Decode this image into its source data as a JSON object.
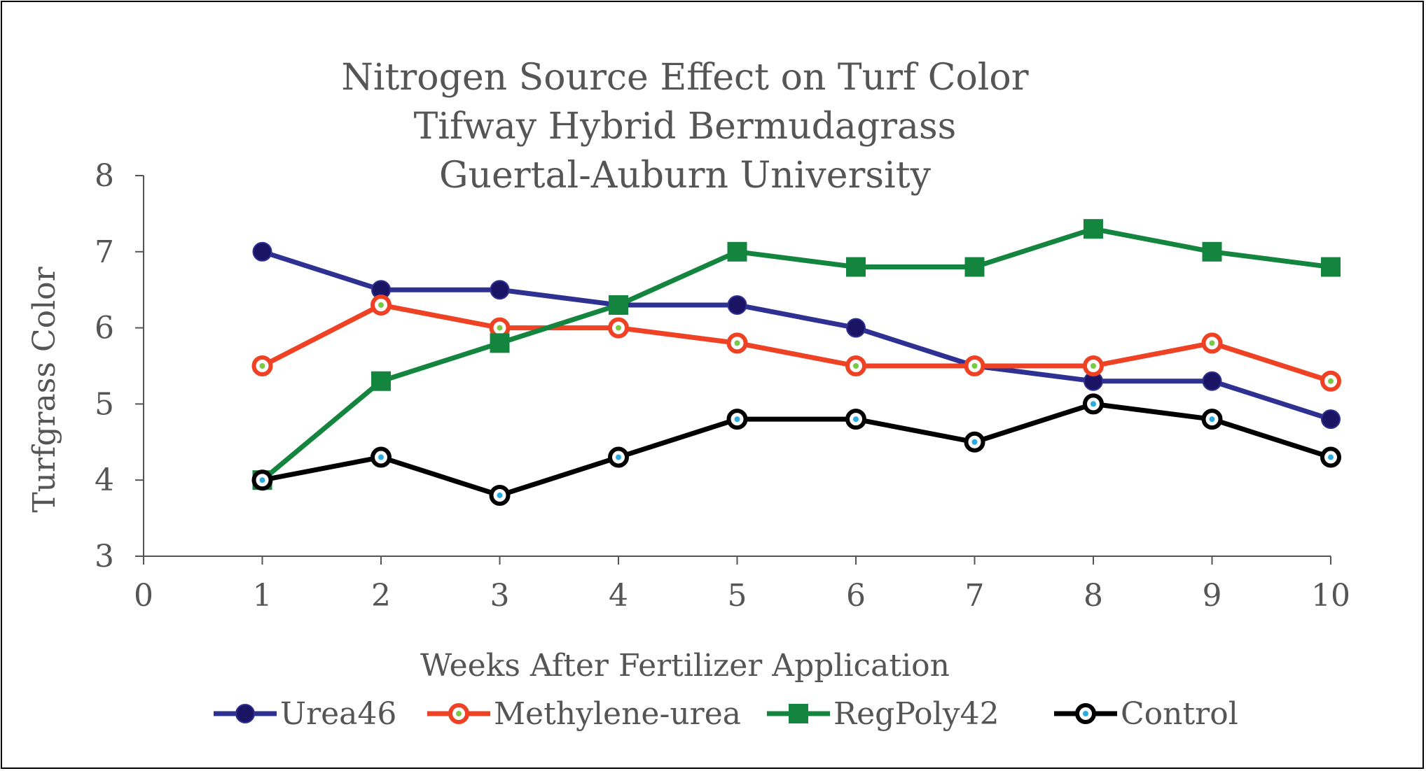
{
  "chart_data": {
    "type": "line",
    "title": [
      "Nitrogen Source Effect on Turf Color",
      "Tifway Hybrid Bermudagrass",
      "Guertal-Auburn University"
    ],
    "xlabel": "Weeks After Fertilizer Application",
    "ylabel": "Turfgrass Color",
    "xlim": [
      0,
      10
    ],
    "ylim": [
      3,
      8
    ],
    "x_ticks": [
      0,
      1,
      2,
      3,
      4,
      5,
      6,
      7,
      8,
      9,
      10
    ],
    "y_ticks": [
      3,
      4,
      5,
      6,
      7,
      8
    ],
    "x": [
      1,
      2,
      3,
      4,
      5,
      6,
      7,
      8,
      9,
      10
    ],
    "legend_position": "bottom",
    "grid": false,
    "series": [
      {
        "name": "Urea46",
        "color": "#2E3192",
        "marker": "circle",
        "marker_fill": "#1B1464",
        "center_dot": null,
        "values": [
          7.0,
          6.5,
          6.5,
          6.3,
          6.3,
          6.0,
          5.5,
          5.3,
          5.3,
          4.8
        ]
      },
      {
        "name": "Methylene-urea",
        "color": "#EF4123",
        "marker": "circle-hollow",
        "marker_fill": "#EF4123",
        "center_dot": "#7AC943",
        "values": [
          5.5,
          6.3,
          6.0,
          6.0,
          5.8,
          5.5,
          5.5,
          5.5,
          5.8,
          5.3
        ]
      },
      {
        "name": "RegPoly42",
        "color": "#14853E",
        "marker": "square",
        "marker_fill": "#14853E",
        "center_dot": null,
        "values": [
          4.0,
          5.3,
          5.8,
          6.3,
          7.0,
          6.8,
          6.8,
          7.3,
          7.0,
          6.8
        ]
      },
      {
        "name": "Control",
        "color": "#000000",
        "marker": "circle-hollow",
        "marker_fill": "#000000",
        "center_dot": "#29ABE2",
        "values": [
          4.0,
          4.3,
          3.8,
          4.3,
          4.8,
          4.8,
          4.5,
          5.0,
          4.8,
          4.3
        ]
      }
    ]
  }
}
